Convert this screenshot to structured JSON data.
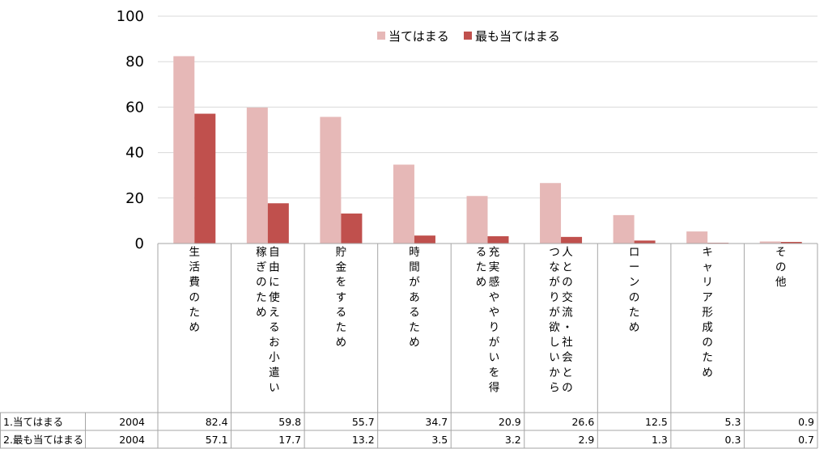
{
  "colors": {
    "series1": "#e6b8b7",
    "series2": "#c0504d",
    "grid": "#d9d9d9",
    "table_border": "#a6a6a6"
  },
  "chart_data": {
    "type": "bar",
    "ylim": [
      0,
      100
    ],
    "yticks": [
      "0",
      "20",
      "40",
      "60",
      "80",
      "100"
    ],
    "grid": true,
    "legend_position": "top-right",
    "categories": [
      [
        "生活費のため"
      ],
      [
        "稼ぎのため",
        "自由に使えるお小遣い"
      ],
      [
        "貯金をするため"
      ],
      [
        "時間があるため"
      ],
      [
        "るため",
        "充実感ややりがいを得"
      ],
      [
        "つながりが欲しいから",
        "人との交流・社会との"
      ],
      [
        "ローンのため"
      ],
      [
        "キャリア形成のため"
      ],
      [
        "その他"
      ]
    ],
    "series": [
      {
        "name": "当てはまる",
        "row_label": "1.当てはまる",
        "year": "2004",
        "values": [
          82.4,
          59.8,
          55.7,
          34.7,
          20.9,
          26.6,
          12.5,
          5.3,
          0.9
        ],
        "labels": [
          "82.4",
          "59.8",
          "55.7",
          "34.7",
          "20.9",
          "26.6",
          "12.5",
          "5.3",
          "0.9"
        ]
      },
      {
        "name": "最も当てはまる",
        "row_label": "2.最も当てはまる",
        "year": "2004",
        "values": [
          57.1,
          17.7,
          13.2,
          3.5,
          3.2,
          2.9,
          1.3,
          0.3,
          0.7
        ],
        "labels": [
          "57.1",
          "17.7",
          "13.2",
          "3.5",
          "3.2",
          "2.9",
          "1.3",
          "0.3",
          "0.7"
        ]
      }
    ]
  }
}
